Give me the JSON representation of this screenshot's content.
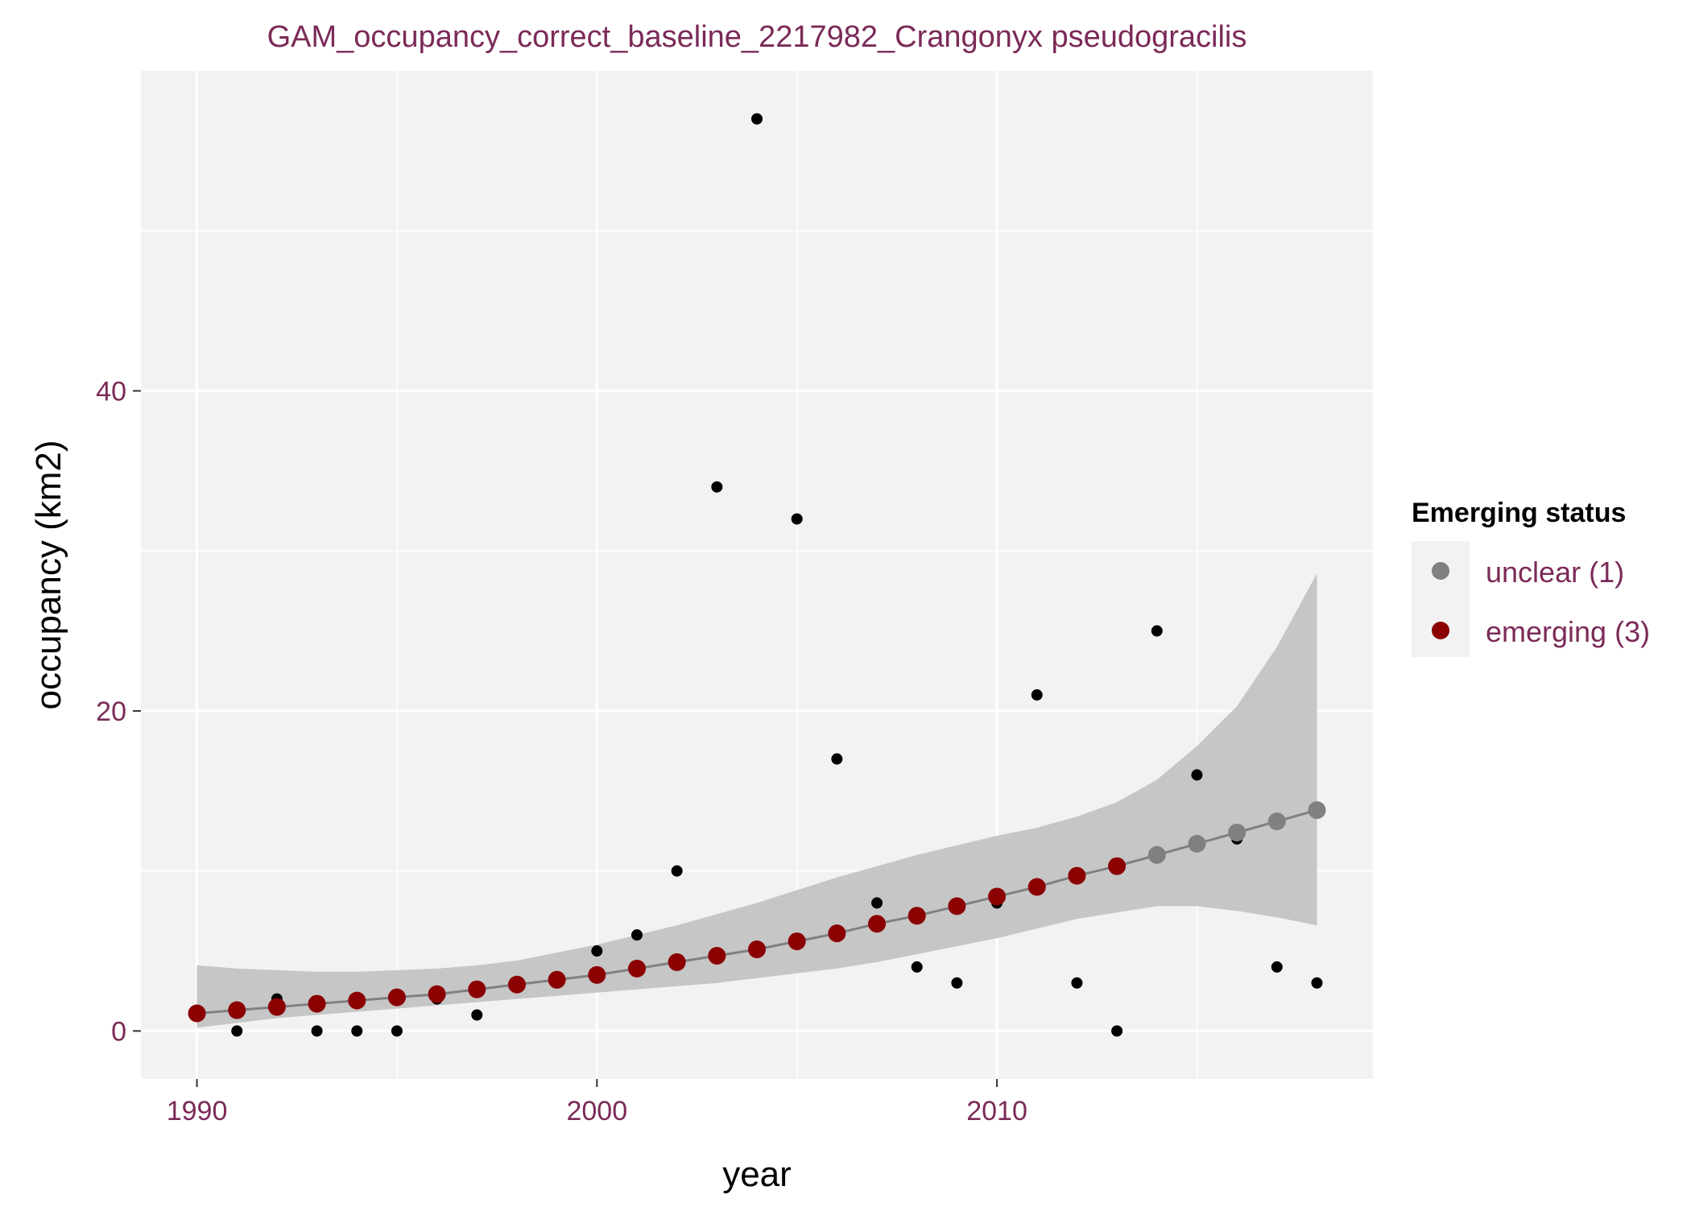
{
  "chart_data": {
    "type": "scatter",
    "title": "GAM_occupancy_correct_baseline_2217982_Crangonyx pseudogracilis",
    "xlabel": "year",
    "ylabel": "occupancy (km2)",
    "xlim": [
      1988.6,
      2019.4
    ],
    "ylim": [
      -3,
      60
    ],
    "x_ticks": [
      1990,
      2000,
      2010
    ],
    "y_ticks": [
      0,
      20,
      40
    ],
    "grid": true,
    "legend": {
      "title": "Emerging status",
      "position": "right",
      "entries": [
        {
          "label": "unclear (1)",
          "color": "#808080"
        },
        {
          "label": "emerging (3)",
          "color": "#8b0000"
        }
      ]
    },
    "colors": {
      "title": "#7b2a58",
      "panel": "#f2f2f2",
      "grid": "#ffffff",
      "ribbon": "#c6c6c6",
      "line": "#808080",
      "observed": "#000000"
    },
    "series": [
      {
        "kind": "observed",
        "x": [
          1990,
          1991,
          1992,
          1993,
          1994,
          1995,
          1996,
          1997,
          1998,
          1999,
          2000,
          2001,
          2002,
          2003,
          2004,
          2005,
          2006,
          2007,
          2008,
          2009,
          2010,
          2011,
          2012,
          2013,
          2014,
          2015,
          2016,
          2017,
          2018
        ],
        "y": [
          1,
          0,
          2,
          0,
          0,
          0,
          2,
          1,
          3,
          3,
          5,
          6,
          10,
          34,
          57,
          32,
          17,
          8,
          4,
          3,
          8,
          21,
          3,
          0,
          25,
          16,
          12,
          4,
          3
        ]
      },
      {
        "kind": "fit",
        "x": [
          1990,
          1991,
          1992,
          1993,
          1994,
          1995,
          1996,
          1997,
          1998,
          1999,
          2000,
          2001,
          2002,
          2003,
          2004,
          2005,
          2006,
          2007,
          2008,
          2009,
          2010,
          2011,
          2012,
          2013,
          2014,
          2015,
          2016,
          2017,
          2018
        ],
        "y": [
          1.1,
          1.3,
          1.5,
          1.7,
          1.9,
          2.1,
          2.3,
          2.6,
          2.9,
          3.2,
          3.5,
          3.9,
          4.3,
          4.7,
          5.1,
          5.6,
          6.1,
          6.7,
          7.2,
          7.8,
          8.4,
          9.0,
          9.7,
          10.3,
          11.0,
          11.7,
          12.4,
          13.1,
          13.8
        ],
        "status": [
          "emerging (3)",
          "emerging (3)",
          "emerging (3)",
          "emerging (3)",
          "emerging (3)",
          "emerging (3)",
          "emerging (3)",
          "emerging (3)",
          "emerging (3)",
          "emerging (3)",
          "emerging (3)",
          "emerging (3)",
          "emerging (3)",
          "emerging (3)",
          "emerging (3)",
          "emerging (3)",
          "emerging (3)",
          "emerging (3)",
          "emerging (3)",
          "emerging (3)",
          "emerging (3)",
          "emerging (3)",
          "emerging (3)",
          "emerging (3)",
          "unclear (1)",
          "unclear (1)",
          "unclear (1)",
          "unclear (1)",
          "unclear (1)"
        ],
        "lower": [
          0.2,
          0.5,
          0.8,
          1.0,
          1.2,
          1.4,
          1.6,
          1.8,
          2.0,
          2.2,
          2.4,
          2.6,
          2.8,
          3.0,
          3.3,
          3.6,
          3.9,
          4.3,
          4.8,
          5.3,
          5.8,
          6.4,
          7.0,
          7.4,
          7.8,
          7.8,
          7.5,
          7.1,
          6.6
        ],
        "upper": [
          4.1,
          3.9,
          3.8,
          3.7,
          3.7,
          3.8,
          3.9,
          4.1,
          4.4,
          4.9,
          5.4,
          6.0,
          6.6,
          7.3,
          8.0,
          8.8,
          9.6,
          10.3,
          11.0,
          11.6,
          12.2,
          12.7,
          13.4,
          14.3,
          15.7,
          17.8,
          20.3,
          24.0,
          28.6
        ]
      }
    ]
  }
}
